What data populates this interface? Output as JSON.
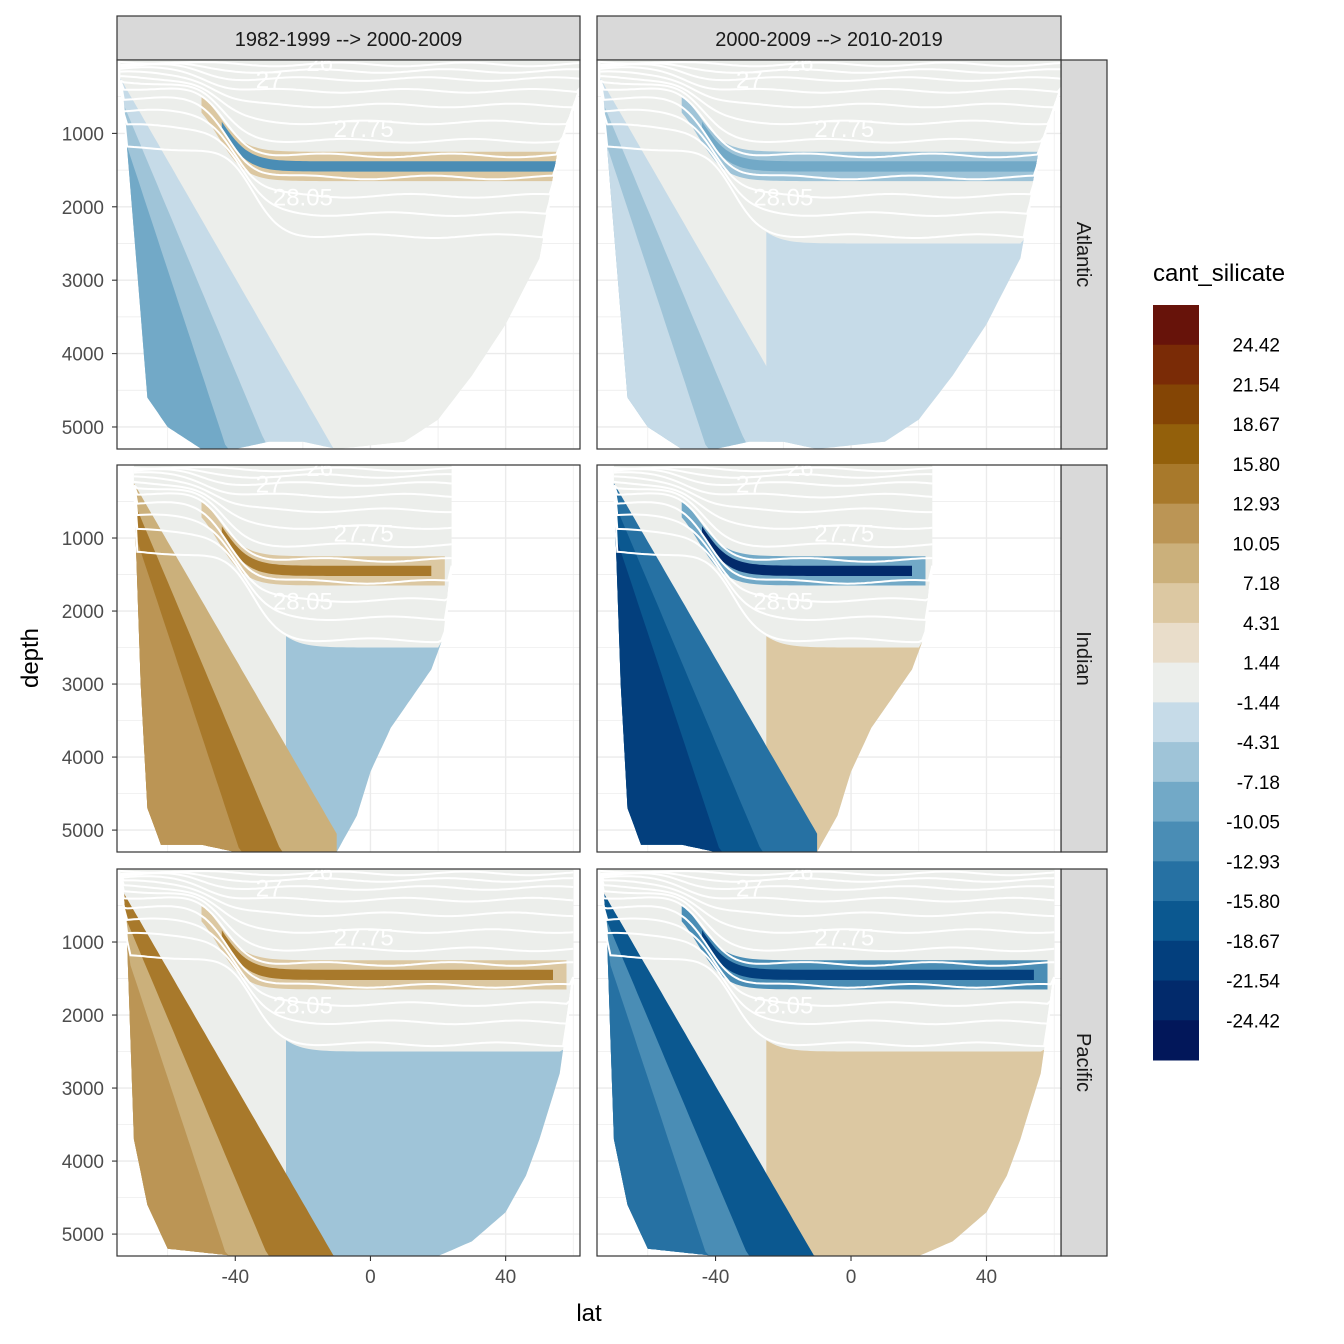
{
  "chart_data": {
    "type": "heatmap",
    "subtype": "faceted filled contour sections",
    "facets": {
      "columns": [
        "1982-1999 --> 2000-2009",
        "2000-2009 --> 2010-2019"
      ],
      "rows": [
        "Atlantic",
        "Indian",
        "Pacific"
      ]
    },
    "xlabel": "lat",
    "ylabel": "depth",
    "x_ticks": [
      -40,
      0,
      40
    ],
    "xlim": [
      -75,
      62
    ],
    "y_ticks": [
      1000,
      2000,
      3000,
      4000,
      5000
    ],
    "ylim": [
      5300,
      0
    ],
    "y_reversed": true,
    "grid": true,
    "legend": {
      "title": "cant_silicate",
      "placement": "right",
      "labels": [
        "24.42",
        "21.54",
        "18.67",
        "15.80",
        "12.93",
        "10.05",
        "7.18",
        "4.31",
        "1.44",
        "-1.44",
        "-4.31",
        "-7.18",
        "-10.05",
        "-12.93",
        "-15.80",
        "-18.67",
        "-21.54",
        "-24.42"
      ],
      "colors": [
        "#67130a",
        "#7a2b06",
        "#844505",
        "#93600b",
        "#a8792b",
        "#bb9555",
        "#cbb07b",
        "#dcc8a2",
        "#e9ddca",
        "#eceeeb",
        "#c6dbe8",
        "#9fc4d8",
        "#72a9c7",
        "#4a8db5",
        "#2671a3",
        "#0b5890",
        "#033f7d",
        "#022a6b",
        "#02175a"
      ]
    },
    "isopycnal_labels": [
      "26",
      "27",
      "27.75",
      "28.05"
    ],
    "panels": [
      {
        "row": "Atlantic",
        "col": "1982-1999 --> 2000-2009",
        "south_deep_class": "-10.05",
        "mid_layer_class": "4.31"
      },
      {
        "row": "Atlantic",
        "col": "2000-2009 --> 2010-2019",
        "south_deep_class": "-4.31",
        "mid_layer_class": "-7.18"
      },
      {
        "row": "Indian",
        "col": "1982-1999 --> 2000-2009",
        "south_deep_class": "10.05",
        "mid_layer_class": "4.31"
      },
      {
        "row": "Indian",
        "col": "2000-2009 --> 2010-2019",
        "south_deep_class": "-21.54",
        "mid_layer_class": "-10.05"
      },
      {
        "row": "Pacific",
        "col": "1982-1999 --> 2000-2009",
        "south_deep_class": "10.05",
        "mid_layer_class": "4.31"
      },
      {
        "row": "Pacific",
        "col": "2000-2009 --> 2010-2019",
        "south_deep_class": "-15.80",
        "mid_layer_class": "-12.93"
      }
    ]
  }
}
